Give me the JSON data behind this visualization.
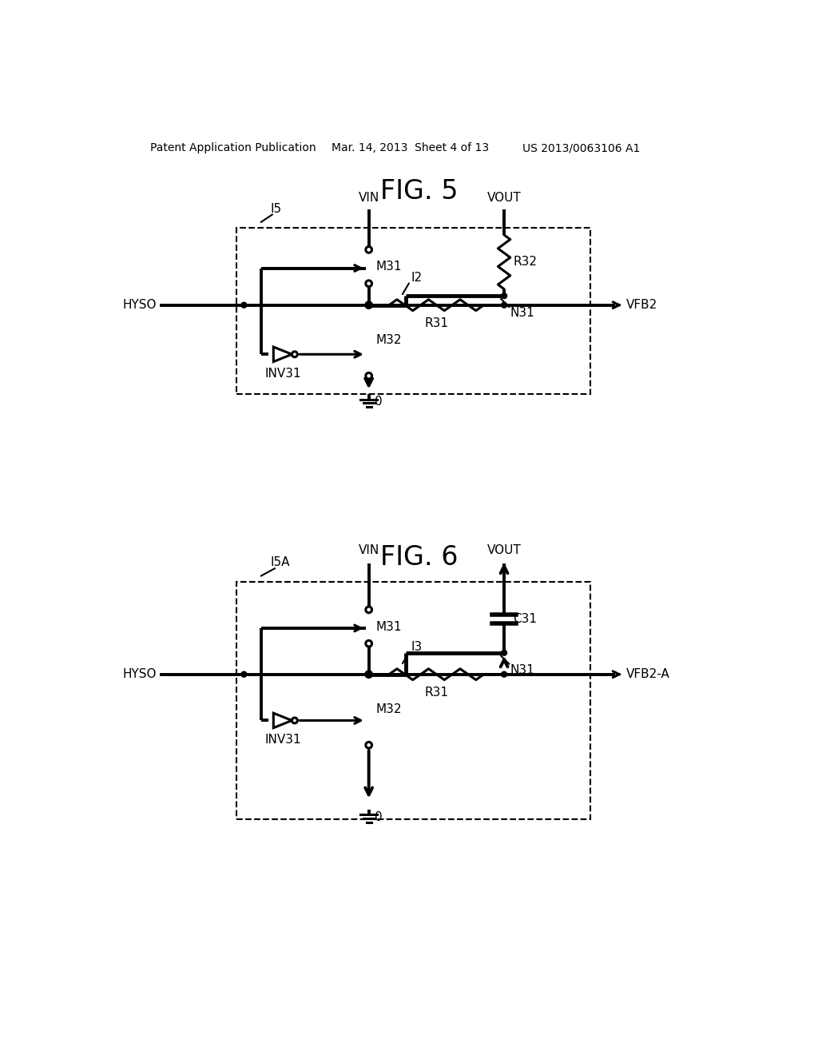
{
  "header_left": "Patent Application Publication",
  "header_center": "Mar. 14, 2013  Sheet 4 of 13",
  "header_right": "US 2013/0063106 A1",
  "bg_color": "#ffffff",
  "line_color": "#000000"
}
